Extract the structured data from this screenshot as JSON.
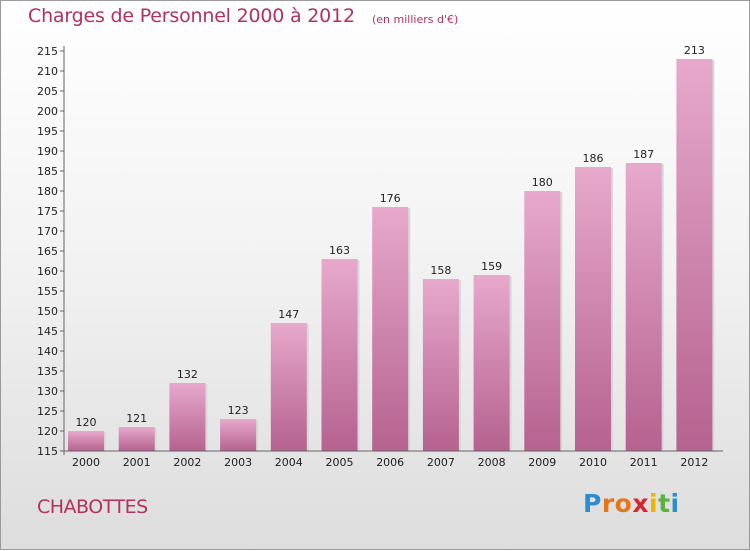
{
  "header": {
    "title": "Charges de Personnel 2000 à 2012",
    "subtitle": "(en milliers d'€)"
  },
  "footer": {
    "commune": "CHABOTTES",
    "logo_letters": [
      "P",
      "r",
      "o",
      "x",
      "i",
      "t",
      "i"
    ],
    "logo_colors": [
      "#2e8bd0",
      "#e7761b",
      "#e7761b",
      "#d9262e",
      "#f0b400",
      "#5bb33d",
      "#2e8bd0"
    ],
    "logo_text": "Proxiti"
  },
  "colors": {
    "accent": "#b6305f",
    "bar_top": "#e7a9cc",
    "bar_bottom": "#b5628f"
  },
  "chart_data": {
    "type": "bar",
    "categories": [
      "2000",
      "2001",
      "2002",
      "2003",
      "2004",
      "2005",
      "2006",
      "2007",
      "2008",
      "2009",
      "2010",
      "2011",
      "2012"
    ],
    "values": [
      120,
      121,
      132,
      123,
      147,
      163,
      176,
      158,
      159,
      180,
      186,
      187,
      213
    ],
    "ylim": [
      115,
      215
    ],
    "yticks": [
      115,
      120,
      125,
      130,
      135,
      140,
      145,
      150,
      155,
      160,
      165,
      170,
      175,
      180,
      185,
      190,
      195,
      200,
      205,
      210,
      215
    ],
    "grid": false
  }
}
